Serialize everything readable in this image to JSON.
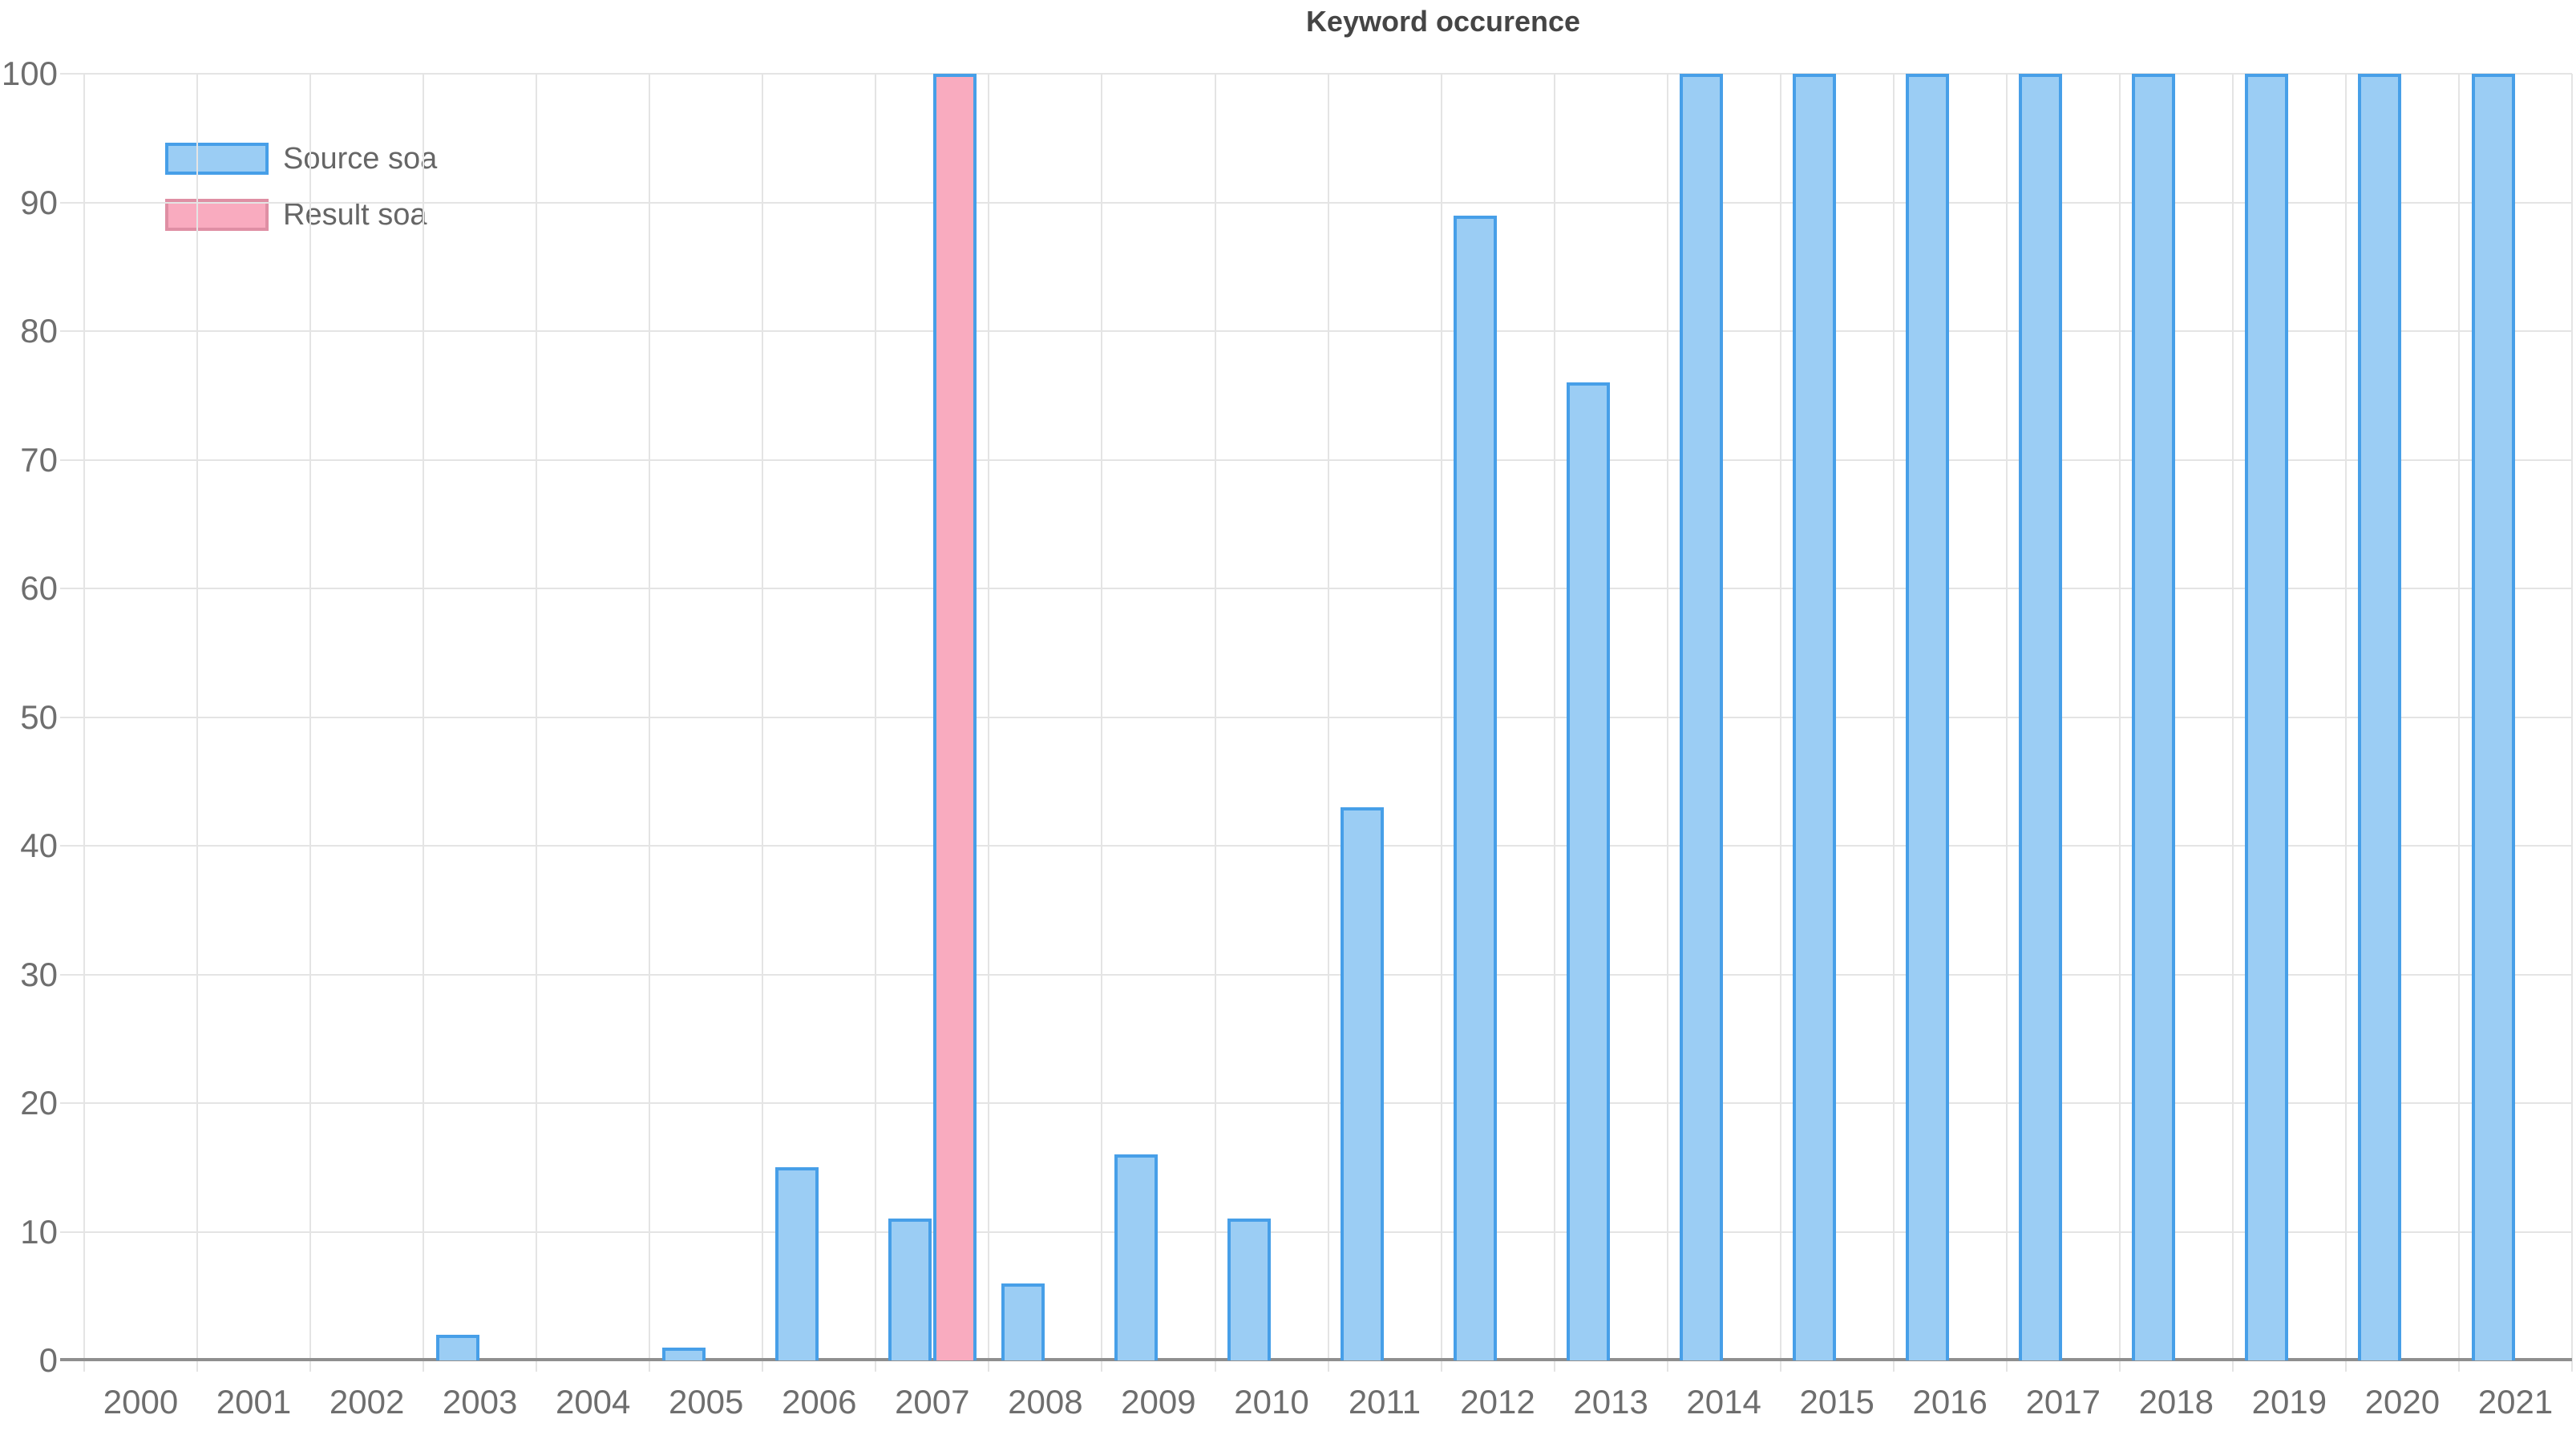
{
  "title": "Keyword occurence",
  "colors": {
    "background": "#FFFFFF",
    "source_fill": "#9BCDF4",
    "source_border": "#479FE8",
    "result_fill": "#F9ABBF",
    "result_bar_border": "#479FE8",
    "result_legend_border": "#DF8FA4",
    "grid": "#E4E4E4",
    "axis_line": "#8F8F8F",
    "tick_label": "#6E6E6E",
    "legend_label": "#666666",
    "title_color": "#454545"
  },
  "legend": {
    "position": "top-left",
    "items": [
      {
        "label": "Source soa"
      },
      {
        "label": "Result soa"
      }
    ]
  },
  "chart_data": {
    "type": "bar",
    "title": "Keyword occurence",
    "categories": [
      "2000",
      "2001",
      "2002",
      "2003",
      "2004",
      "2005",
      "2006",
      "2007",
      "2008",
      "2009",
      "2010",
      "2011",
      "2012",
      "2013",
      "2014",
      "2015",
      "2016",
      "2017",
      "2018",
      "2019",
      "2020",
      "2021"
    ],
    "series": [
      {
        "name": "Source soa",
        "fill": "#9BCDF4",
        "border": "#479FE8",
        "values": [
          0,
          0,
          0,
          2,
          0,
          1,
          15,
          11,
          6,
          16,
          11,
          43,
          89,
          76,
          100,
          100,
          100,
          100,
          100,
          100,
          100,
          100
        ]
      },
      {
        "name": "Result soa",
        "fill": "#F9ABBF",
        "border": "#479FE8",
        "values": [
          0,
          0,
          0,
          0,
          0,
          0,
          0,
          100,
          0,
          0,
          0,
          0,
          0,
          0,
          0,
          0,
          0,
          0,
          0,
          0,
          0,
          0
        ]
      }
    ],
    "xlabel": "",
    "ylabel": "",
    "ylim": [
      0,
      100
    ],
    "yticks": [
      0,
      10,
      20,
      30,
      40,
      50,
      60,
      70,
      80,
      90,
      100
    ],
    "grid": true,
    "legend_position": "top-left"
  }
}
